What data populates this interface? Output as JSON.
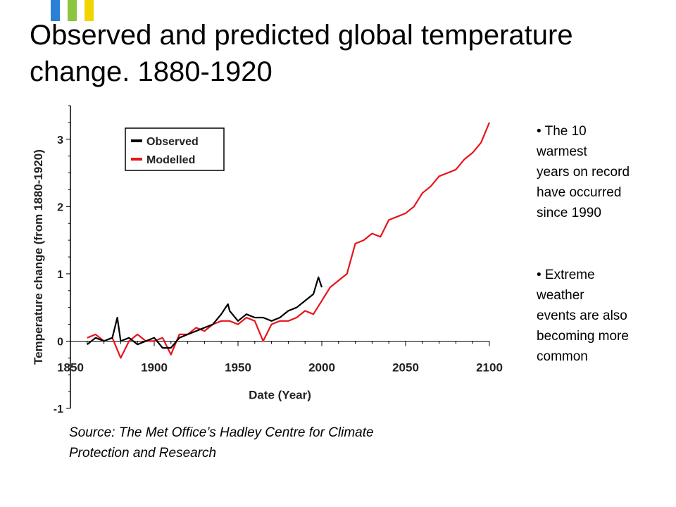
{
  "slide": {
    "title_lines": [
      "Observed and predicted global temperature",
      "change.  1880-1920"
    ],
    "logo_colors": [
      "#2a7fd6",
      "#8cc63f",
      "#f2d500"
    ],
    "bullets": [
      [
        "• The 10",
        "warmest",
        "years on record",
        "have occurred",
        "since 1990"
      ],
      [
        "• Extreme",
        "weather",
        "events are also",
        "becoming more",
        "common"
      ]
    ],
    "source_lines": [
      "Source: The Met Office’s Hadley Centre for Climate",
      "Protection and Research"
    ]
  },
  "chart_data": {
    "type": "line",
    "title": "",
    "xlabel": "Date (Year)",
    "ylabel": "Temperature change (from 1880-1920)",
    "xlim": [
      1850,
      2100
    ],
    "ylim": [
      -1,
      3.5
    ],
    "xticks": [
      1850,
      1900,
      1950,
      2000,
      2050,
      2100
    ],
    "yticks": [
      -1,
      0,
      1,
      2,
      3
    ],
    "grid": false,
    "legend_position": "top-left",
    "series": [
      {
        "name": "Observed",
        "color": "#000000",
        "x": [
          1860,
          1865,
          1870,
          1875,
          1878,
          1880,
          1885,
          1890,
          1895,
          1900,
          1905,
          1910,
          1915,
          1920,
          1925,
          1930,
          1935,
          1940,
          1944,
          1945,
          1950,
          1955,
          1960,
          1965,
          1970,
          1975,
          1980,
          1985,
          1990,
          1995,
          1998,
          2000
        ],
        "y": [
          -0.05,
          0.05,
          0.0,
          0.05,
          0.35,
          0.0,
          0.05,
          -0.05,
          0.0,
          0.05,
          -0.1,
          -0.1,
          0.05,
          0.1,
          0.15,
          0.2,
          0.25,
          0.4,
          0.55,
          0.45,
          0.3,
          0.4,
          0.35,
          0.35,
          0.3,
          0.35,
          0.45,
          0.5,
          0.6,
          0.7,
          0.95,
          0.8
        ]
      },
      {
        "name": "Modelled",
        "color": "#e8141c",
        "x": [
          1860,
          1865,
          1870,
          1875,
          1880,
          1885,
          1890,
          1895,
          1900,
          1905,
          1910,
          1915,
          1920,
          1925,
          1930,
          1935,
          1940,
          1945,
          1950,
          1955,
          1960,
          1965,
          1970,
          1975,
          1980,
          1985,
          1990,
          1995,
          2000,
          2005,
          2010,
          2015,
          2020,
          2025,
          2030,
          2035,
          2040,
          2045,
          2050,
          2055,
          2060,
          2065,
          2070,
          2075,
          2080,
          2085,
          2090,
          2095,
          2100
        ],
        "y": [
          0.05,
          0.1,
          0.0,
          0.05,
          -0.25,
          0.0,
          0.1,
          0.0,
          0.0,
          0.05,
          -0.2,
          0.1,
          0.1,
          0.2,
          0.15,
          0.25,
          0.3,
          0.3,
          0.25,
          0.35,
          0.3,
          0.0,
          0.25,
          0.3,
          0.3,
          0.35,
          0.45,
          0.4,
          0.6,
          0.8,
          0.9,
          1.0,
          1.45,
          1.5,
          1.6,
          1.55,
          1.8,
          1.85,
          1.9,
          2.0,
          2.2,
          2.3,
          2.45,
          2.5,
          2.55,
          2.7,
          2.8,
          2.95,
          3.25
        ]
      }
    ]
  }
}
